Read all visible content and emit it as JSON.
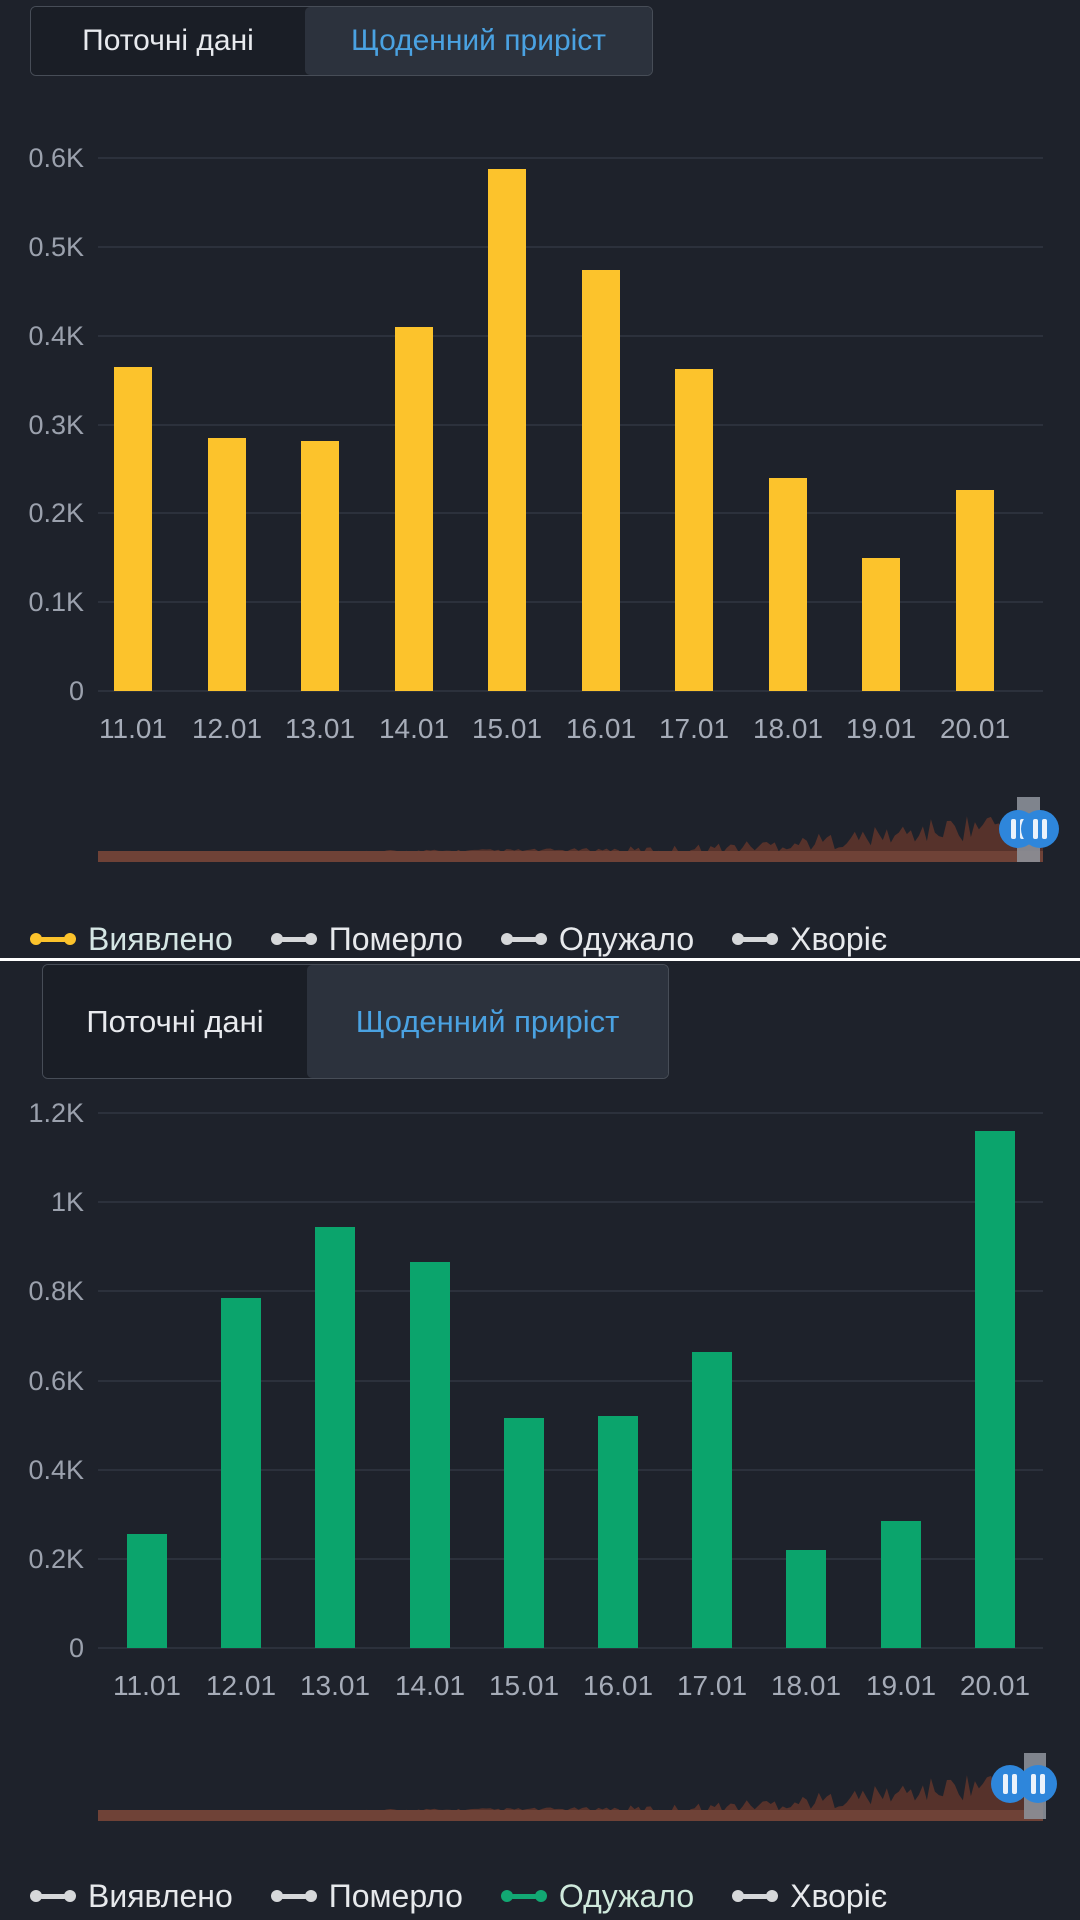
{
  "colors": {
    "background": "#1e222b",
    "grid_line": "#2c313c",
    "axis_label": "#9ba1ad",
    "tab_active_text": "#4aa2e2",
    "tab_inactive_text": "#e8eaee",
    "tab_active_bg": "#2c323d",
    "tab_container_bg": "#1a1e26",
    "tab_border": "#474d57",
    "bar_yellow": "#fcc32c",
    "bar_green": "#0ba46c",
    "navigator_area": "#56322b",
    "navigator_base": "#6f4237",
    "brush_rect": "#8d929b",
    "handle_blue": "#2e86db",
    "handle_glyph": "#eaf2fb",
    "divider": "#ffffff",
    "legend_text": "#e7e9ec"
  },
  "chart_data": [
    {
      "type": "bar",
      "title": "",
      "categories": [
        "11.01",
        "12.01",
        "13.01",
        "14.01",
        "15.01",
        "16.01",
        "17.01",
        "18.01",
        "19.01",
        "20.01"
      ],
      "values": [
        365,
        285,
        281,
        410,
        588,
        474,
        362,
        240,
        150,
        226
      ],
      "series_name": "Виявлено",
      "bar_color": "#fcc32c",
      "xlabel": "",
      "ylabel": "",
      "ylim": [
        0,
        600
      ],
      "ytick_labels": [
        "0",
        "0.1K",
        "0.2K",
        "0.3K",
        "0.4K",
        "0.5K",
        "0.6K"
      ],
      "grid": true,
      "legend_position": "bottom"
    },
    {
      "type": "bar",
      "title": "",
      "categories": [
        "11.01",
        "12.01",
        "13.01",
        "14.01",
        "15.01",
        "16.01",
        "17.01",
        "18.01",
        "19.01",
        "20.01"
      ],
      "values": [
        255,
        785,
        945,
        865,
        515,
        520,
        665,
        220,
        285,
        1160
      ],
      "series_name": "Одужало",
      "bar_color": "#0ba46c",
      "xlabel": "",
      "ylabel": "",
      "ylim": [
        0,
        1200
      ],
      "ytick_labels": [
        "0",
        "0.2K",
        "0.4K",
        "0.6K",
        "0.8K",
        "1K",
        "1.2K"
      ],
      "grid": true,
      "legend_position": "bottom"
    }
  ],
  "panels": [
    {
      "tabs": {
        "inactive_label": "Поточні дані",
        "active_label": "Щоденний приріст"
      },
      "legend": [
        {
          "label": "Виявлено",
          "marker_color": "#fcc32c",
          "text_color": "#d5e6e4"
        },
        {
          "label": "Померло",
          "marker_color": "#d6d8da",
          "text_color": "#e7e9ec"
        },
        {
          "label": "Одужало",
          "marker_color": "#d6d8da",
          "text_color": "#e7e9ec"
        },
        {
          "label": "Хворіє",
          "marker_color": "#d6d8da",
          "text_color": "#e7e9ec"
        }
      ]
    },
    {
      "tabs": {
        "inactive_label": "Поточні дані",
        "active_label": "Щоденний приріст"
      },
      "legend": [
        {
          "label": "Виявлено",
          "marker_color": "#d6d8da",
          "text_color": "#e7e9ec"
        },
        {
          "label": "Померло",
          "marker_color": "#d6d8da",
          "text_color": "#e7e9ec"
        },
        {
          "label": "Одужало",
          "marker_color": "#12a873",
          "text_color": "#cfe9dc"
        },
        {
          "label": "Хворіє",
          "marker_color": "#d6d8da",
          "text_color": "#e7e9ec"
        }
      ]
    }
  ]
}
